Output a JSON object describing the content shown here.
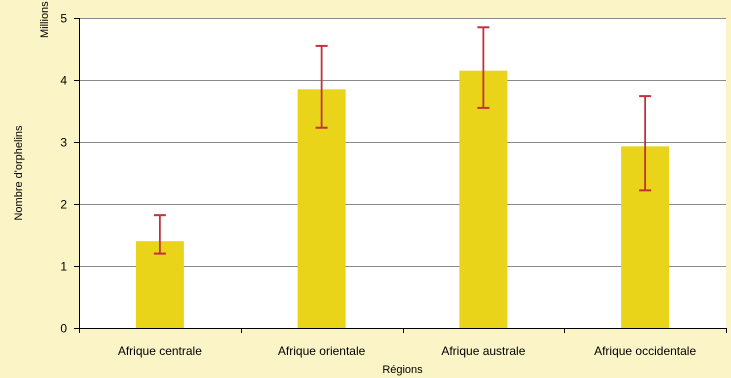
{
  "chart_data": {
    "type": "bar",
    "title": "",
    "xlabel": "Régions",
    "ylabel": "Nombre d'orphelins",
    "yunit": "Millions",
    "categories": [
      "Afrique centrale",
      "Afrique orientale",
      "Afrique australe",
      "Afrique occidentale"
    ],
    "values": [
      1.4,
      3.85,
      4.15,
      2.93
    ],
    "error_low": [
      1.2,
      3.23,
      3.55,
      2.22
    ],
    "error_high": [
      1.82,
      4.55,
      4.85,
      3.74
    ],
    "ylim": [
      0,
      5
    ],
    "yticks": [
      "0",
      "1",
      "2",
      "3",
      "4",
      "5"
    ],
    "grid": true,
    "legend": "none",
    "colors": {
      "bar": "#ead41a",
      "error_bar": "#c0323c",
      "background": "#fbf4c6",
      "plot_background": "#ffffff",
      "grid": "#8a8a8a"
    }
  }
}
